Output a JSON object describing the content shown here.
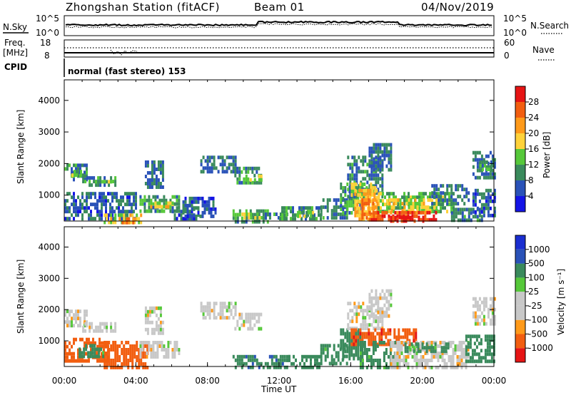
{
  "header": {
    "title": "Zhongshan Station (fitACF)",
    "beam": "Beam 01",
    "date": "04/Nov/2019"
  },
  "noise_panel": {
    "left_label": "N.Sky",
    "left_ticks": [
      "10^5",
      "10^0"
    ],
    "right_ticks": [
      "10^5",
      "10^0"
    ],
    "right_label": "N.Search"
  },
  "freq_panel": {
    "left_label_1": "Freq.",
    "left_label_2": "[MHz]",
    "left_ticks": [
      "18",
      "8"
    ],
    "right_ticks": [
      "60",
      "0"
    ],
    "right_label": "Nave"
  },
  "cpid_panel": {
    "label": "CPID",
    "program": "normal (fast stereo) 153"
  },
  "colors": {
    "power": [
      "#1414e6",
      "#2a52b8",
      "#3a8a5c",
      "#56c83a",
      "#ffd23a",
      "#ff9a1a",
      "#f25e10",
      "#e61414"
    ],
    "velocity": [
      "#e61414",
      "#f25e10",
      "#ff9a1a",
      "#c8c8c8",
      "#c8c8c8",
      "#56c83a",
      "#3a8a5c",
      "#2a52b8",
      "#1a2ed0"
    ]
  },
  "chart_data": [
    {
      "type": "heatmap",
      "title": "Power",
      "ylabel": "Slant Range [km]",
      "y_ticks": [
        "1000",
        "2000",
        "3000",
        "4000"
      ],
      "ylim": [
        180,
        4650
      ],
      "xlim": [
        0,
        24
      ],
      "colorbar": {
        "label": "Power [dB]",
        "ticks": [
          "4",
          "8",
          "12",
          "16",
          "20",
          "24",
          "28"
        ],
        "range": [
          0,
          32
        ]
      },
      "regions": [
        {
          "t0": 0.0,
          "t1": 1.3,
          "r0": 1450,
          "r1": 2000,
          "v": 9
        },
        {
          "t0": 0.4,
          "t1": 1.1,
          "r0": 1600,
          "r1": 1800,
          "v": 14
        },
        {
          "t0": 1.0,
          "t1": 2.9,
          "r0": 1300,
          "r1": 1600,
          "v": 10
        },
        {
          "t0": 1.6,
          "t1": 2.6,
          "r0": 1380,
          "r1": 1480,
          "v": 13
        },
        {
          "t0": 0.0,
          "t1": 4.0,
          "r0": 250,
          "r1": 1100,
          "v": 7
        },
        {
          "t0": 2.2,
          "t1": 4.3,
          "r0": 180,
          "r1": 420,
          "v": 18
        },
        {
          "t0": 3.2,
          "t1": 4.0,
          "r0": 180,
          "r1": 300,
          "v": 24
        },
        {
          "t0": 4.2,
          "t1": 6.4,
          "r0": 500,
          "r1": 1000,
          "v": 11
        },
        {
          "t0": 4.8,
          "t1": 6.0,
          "r0": 600,
          "r1": 800,
          "v": 18
        },
        {
          "t0": 4.5,
          "t1": 5.5,
          "r0": 1300,
          "r1": 2100,
          "v": 8
        },
        {
          "t0": 6.0,
          "t1": 7.5,
          "r0": 250,
          "r1": 650,
          "v": 7
        },
        {
          "t0": 6.6,
          "t1": 8.4,
          "r0": 350,
          "r1": 950,
          "v": 6
        },
        {
          "t0": 7.6,
          "t1": 9.6,
          "r0": 1700,
          "r1": 2250,
          "v": 8
        },
        {
          "t0": 9.5,
          "t1": 11.0,
          "r0": 1400,
          "r1": 1900,
          "v": 10
        },
        {
          "t0": 10.0,
          "t1": 11.0,
          "r0": 1450,
          "r1": 1650,
          "v": 14
        },
        {
          "t0": 9.4,
          "t1": 11.4,
          "r0": 200,
          "r1": 550,
          "v": 11
        },
        {
          "t0": 9.9,
          "t1": 11.0,
          "r0": 250,
          "r1": 450,
          "v": 15
        },
        {
          "t0": 11.2,
          "t1": 12.4,
          "r0": 280,
          "r1": 450,
          "v": 9
        },
        {
          "t0": 12.0,
          "t1": 14.3,
          "r0": 200,
          "r1": 650,
          "v": 10
        },
        {
          "t0": 13.0,
          "t1": 14.0,
          "r0": 350,
          "r1": 500,
          "v": 14
        },
        {
          "t0": 14.3,
          "t1": 15.8,
          "r0": 300,
          "r1": 900,
          "v": 9
        },
        {
          "t0": 15.4,
          "t1": 16.6,
          "r0": 400,
          "r1": 1400,
          "v": 11
        },
        {
          "t0": 15.8,
          "t1": 17.8,
          "r0": 900,
          "r1": 2250,
          "v": 9
        },
        {
          "t0": 16.0,
          "t1": 17.4,
          "r0": 1000,
          "r1": 1400,
          "v": 16
        },
        {
          "t0": 16.2,
          "t1": 17.6,
          "r0": 200,
          "r1": 1200,
          "v": 20
        },
        {
          "t0": 16.6,
          "t1": 17.5,
          "r0": 300,
          "r1": 900,
          "v": 24
        },
        {
          "t0": 17.0,
          "t1": 18.2,
          "r0": 1800,
          "r1": 2650,
          "v": 8
        },
        {
          "t0": 17.5,
          "t1": 21.8,
          "r0": 450,
          "r1": 1100,
          "v": 13
        },
        {
          "t0": 18.0,
          "t1": 20.8,
          "r0": 500,
          "r1": 900,
          "v": 17
        },
        {
          "t0": 17.0,
          "t1": 20.8,
          "r0": 180,
          "r1": 500,
          "v": 27
        },
        {
          "t0": 18.2,
          "t1": 20.0,
          "r0": 180,
          "r1": 350,
          "v": 30
        },
        {
          "t0": 20.5,
          "t1": 22.6,
          "r0": 700,
          "r1": 1350,
          "v": 8
        },
        {
          "t0": 21.6,
          "t1": 23.3,
          "r0": 180,
          "r1": 600,
          "v": 9
        },
        {
          "t0": 22.8,
          "t1": 24.0,
          "r0": 300,
          "r1": 1200,
          "v": 7
        },
        {
          "t0": 22.8,
          "t1": 24.0,
          "r0": 1600,
          "r1": 2400,
          "v": 8
        },
        {
          "t0": 23.2,
          "t1": 24.0,
          "r0": 1850,
          "r1": 2100,
          "v": 11
        }
      ]
    },
    {
      "type": "heatmap",
      "title": "Velocity",
      "ylabel": "Slant Range [km]",
      "y_ticks": [
        "1000",
        "2000",
        "3000",
        "4000"
      ],
      "ylim": [
        180,
        4650
      ],
      "xlim": [
        0,
        24
      ],
      "xlabel": "Time UT",
      "x_ticks": [
        "00:00",
        "04:00",
        "08:00",
        "12:00",
        "16:00",
        "20:00",
        "00:00"
      ],
      "colorbar": {
        "label": "Velocity [m s⁻¹]",
        "ticks": [
          "1000",
          "500",
          "100",
          "25",
          "-25",
          "-100",
          "-500",
          "-1000"
        ],
        "range": [
          -1000,
          1000
        ]
      },
      "regions": [
        {
          "t0": 0.0,
          "t1": 1.3,
          "r0": 1450,
          "r1": 2000,
          "v": 0
        },
        {
          "t0": 1.0,
          "t1": 2.9,
          "r0": 1300,
          "r1": 1600,
          "v": 0
        },
        {
          "t0": 0.0,
          "t1": 2.5,
          "r0": 400,
          "r1": 1100,
          "v": -300
        },
        {
          "t0": 2.2,
          "t1": 4.6,
          "r0": 180,
          "r1": 1000,
          "v": -350
        },
        {
          "t0": 0.8,
          "t1": 2.2,
          "r0": 500,
          "r1": 900,
          "v": 150
        },
        {
          "t0": 4.2,
          "t1": 6.4,
          "r0": 500,
          "r1": 1000,
          "v": 0
        },
        {
          "t0": 4.5,
          "t1": 5.5,
          "r0": 1300,
          "r1": 2100,
          "v": 0
        },
        {
          "t0": 7.6,
          "t1": 9.6,
          "r0": 1700,
          "r1": 2250,
          "v": 0
        },
        {
          "t0": 9.5,
          "t1": 11.0,
          "r0": 1400,
          "r1": 1900,
          "v": 0
        },
        {
          "t0": 9.4,
          "t1": 12.6,
          "r0": 200,
          "r1": 550,
          "v": 400
        },
        {
          "t0": 12.4,
          "t1": 14.3,
          "r0": 200,
          "r1": 550,
          "v": 200
        },
        {
          "t0": 14.3,
          "t1": 15.8,
          "r0": 300,
          "r1": 900,
          "v": 150
        },
        {
          "t0": 15.4,
          "t1": 16.6,
          "r0": 400,
          "r1": 1400,
          "v": 200
        },
        {
          "t0": 15.8,
          "t1": 17.8,
          "r0": 1400,
          "r1": 2250,
          "v": 0
        },
        {
          "t0": 16.0,
          "t1": 19.6,
          "r0": 900,
          "r1": 1400,
          "v": -400
        },
        {
          "t0": 17.0,
          "t1": 18.2,
          "r0": 1800,
          "r1": 2650,
          "v": 0
        },
        {
          "t0": 16.5,
          "t1": 18.5,
          "r0": 200,
          "r1": 1000,
          "v": 150
        },
        {
          "t0": 18.2,
          "t1": 22.6,
          "r0": 180,
          "r1": 1000,
          "v": 0
        },
        {
          "t0": 19.0,
          "t1": 21.5,
          "r0": 650,
          "r1": 950,
          "v": 150
        },
        {
          "t0": 22.4,
          "t1": 24.0,
          "r0": 300,
          "r1": 1200,
          "v": 200
        },
        {
          "t0": 22.8,
          "t1": 24.0,
          "r0": 1600,
          "r1": 2400,
          "v": 0
        }
      ]
    }
  ]
}
